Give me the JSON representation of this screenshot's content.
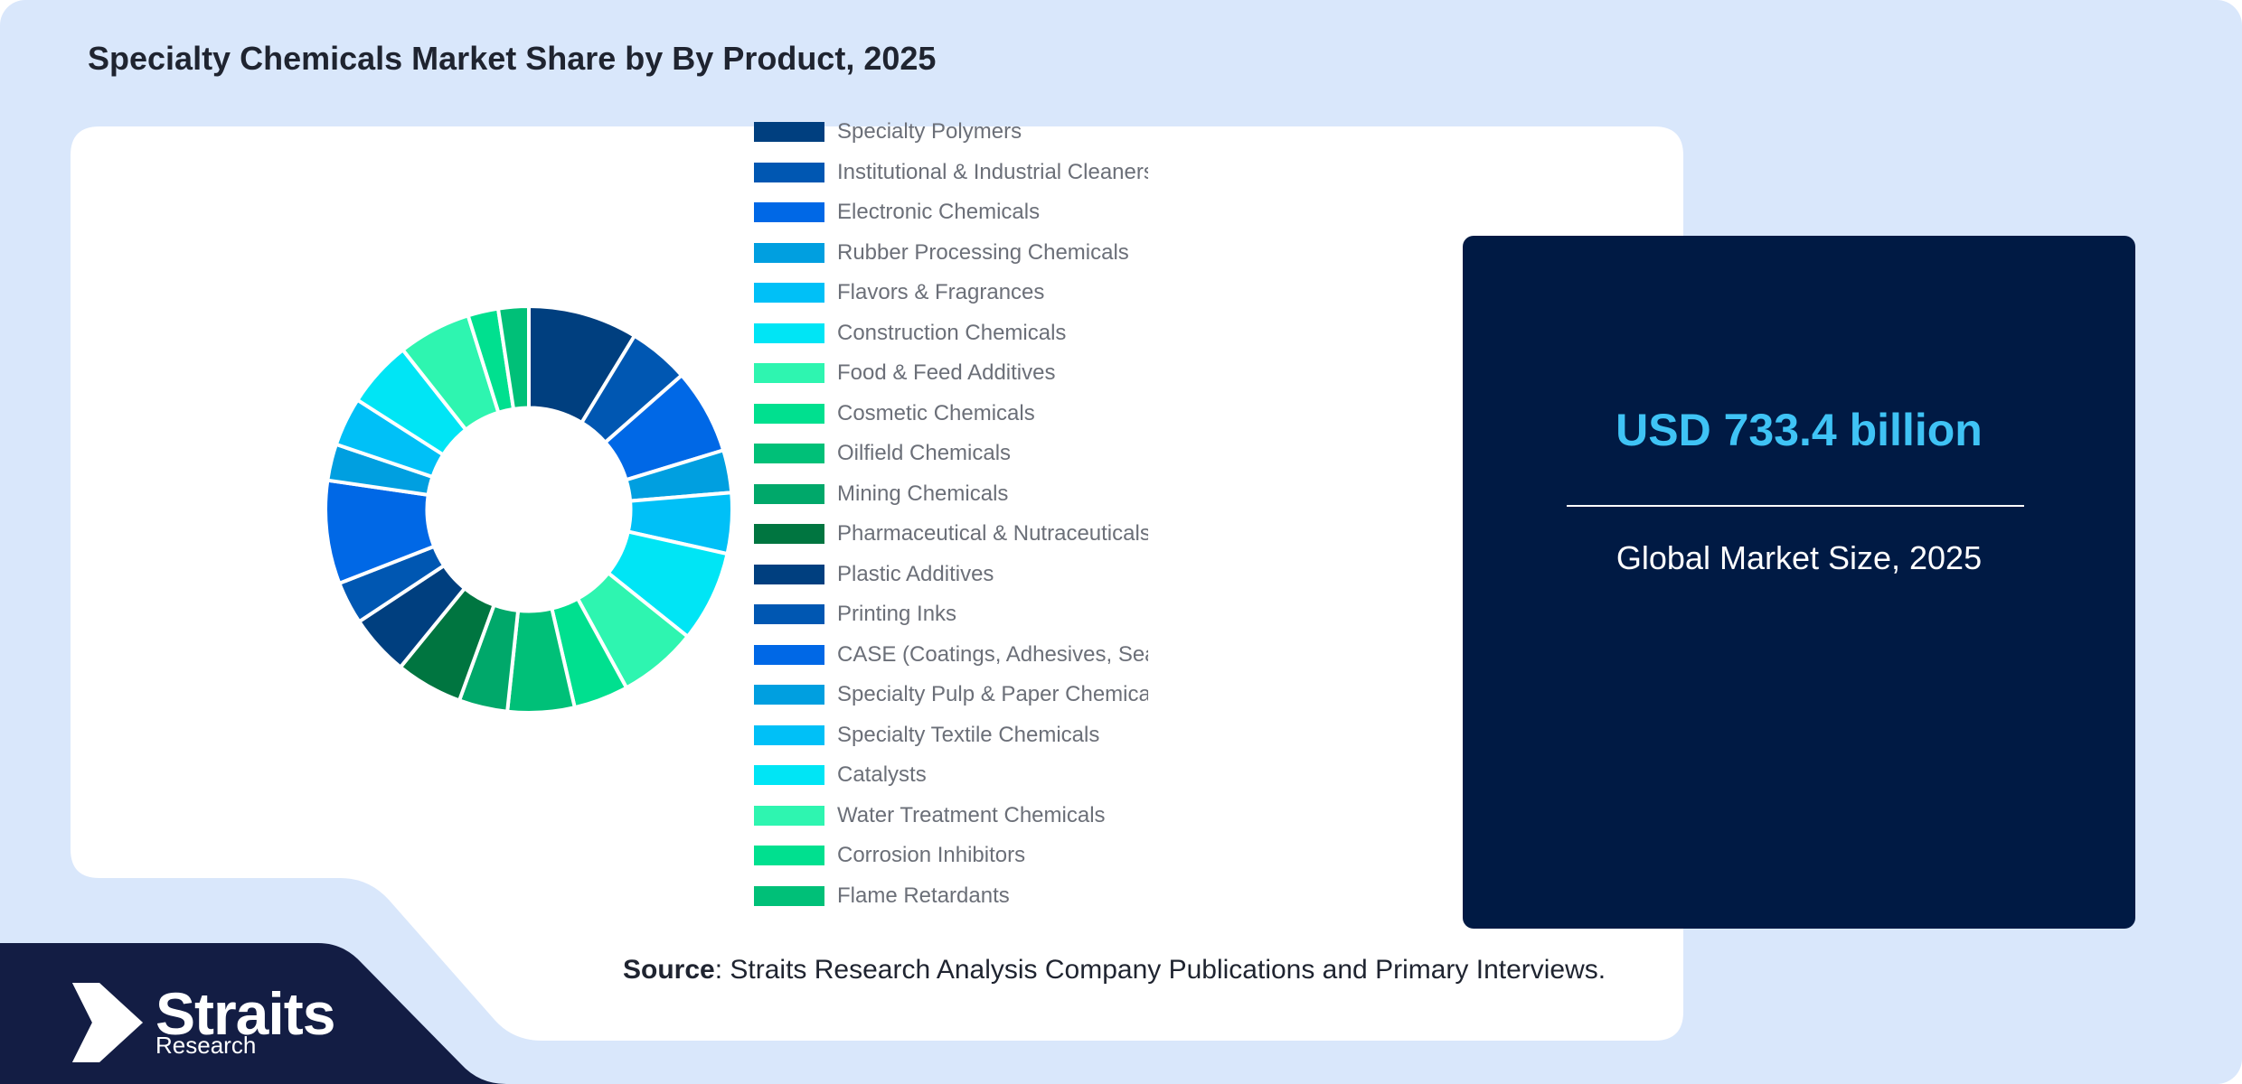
{
  "title": "Specialty Chemicals Market Share by By Product, 2025",
  "chart_data": {
    "type": "pie",
    "categories": [
      "Specialty Polymers",
      "Institutional & Industrial Cleaners",
      "Electronic Chemicals",
      "Rubber Processing Chemicals",
      "Flavors & Fragrances",
      "Construction Chemicals",
      "Food & Feed Additives",
      "Cosmetic Chemicals",
      "Oilfield Chemicals",
      "Mining Chemicals",
      "Pharmaceutical & Nutraceuticals",
      "Plastic Additives",
      "Printing Inks",
      "CASE (Coatings, Adhesives, Sealants & Elastomers)",
      "Specialty Pulp & Paper Chemicals",
      "Specialty Textile Chemicals",
      "Catalysts",
      "Water Treatment Chemicals",
      "Corrosion Inhibitors",
      "Flame Retardants"
    ],
    "values": [
      9.0,
      5.0,
      7.0,
      3.5,
      5.0,
      7.5,
      6.5,
      4.5,
      5.5,
      4.0,
      5.5,
      5.0,
      3.5,
      8.5,
      3.0,
      4.0,
      5.5,
      6.0,
      2.5,
      2.5
    ],
    "colors": [
      "#003f7f",
      "#0057b2",
      "#0068e6",
      "#009fe0",
      "#00c0f7",
      "#00e5f5",
      "#2ef5b0",
      "#00e08f",
      "#00c078",
      "#00a86a",
      "#007540",
      "#003f7f",
      "#0057b2",
      "#0068e6",
      "#009fe0",
      "#00c0f7",
      "#00e5f5",
      "#2ef5b0",
      "#00e08f",
      "#00c078"
    ],
    "hole": 0.5,
    "legend_position": "right"
  },
  "market": {
    "value": "USD 733.4 billion",
    "caption": "Global Market Size, 2025"
  },
  "source": {
    "key": "Source",
    "text": ": Straits Research Analysis Company Publications and Primary Interviews."
  },
  "logo": {
    "name": "Straits",
    "sub": "Research"
  },
  "palette": {
    "page_bg": "#d9e7fb",
    "card_bg": "#ffffff",
    "dark_navy": "#001a44",
    "accent": "#3fc3f5"
  }
}
